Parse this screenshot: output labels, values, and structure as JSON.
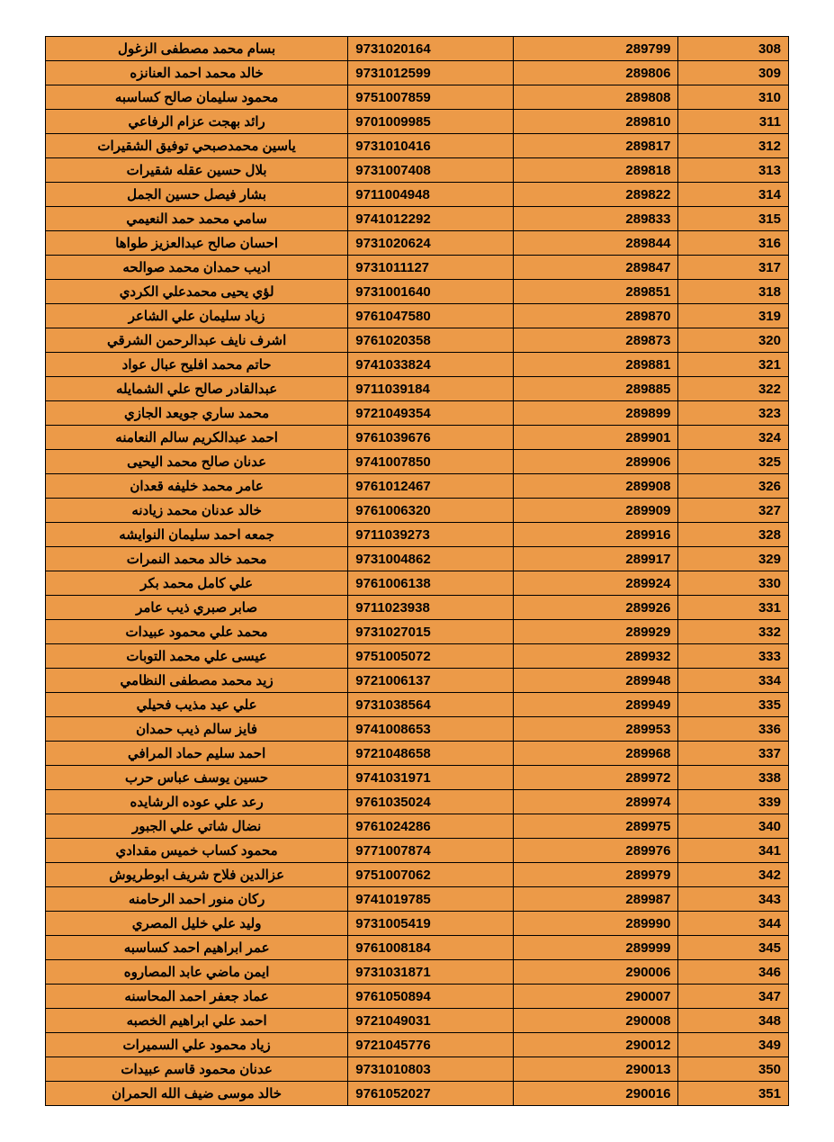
{
  "table": {
    "background_color": "#ec9a48",
    "border_color": "#000000",
    "text_color": "#000000",
    "font_weight": "bold",
    "font_size": 15,
    "columns": [
      {
        "key": "name",
        "align": "center",
        "width": "42%"
      },
      {
        "key": "id",
        "align": "left",
        "width": "22%"
      },
      {
        "key": "code",
        "align": "right",
        "width": "22%"
      },
      {
        "key": "seq",
        "align": "right",
        "width": "14%"
      }
    ],
    "rows": [
      {
        "name": "بسام محمد مصطفى الزغول",
        "id": "9731020164",
        "code": "289799",
        "seq": "308"
      },
      {
        "name": "خالد محمد احمد العنانزه",
        "id": "9731012599",
        "code": "289806",
        "seq": "309"
      },
      {
        "name": "محمود سليمان صالح كساسبه",
        "id": "9751007859",
        "code": "289808",
        "seq": "310"
      },
      {
        "name": "رائد بهجت عزام الرفاعي",
        "id": "9701009985",
        "code": "289810",
        "seq": "311"
      },
      {
        "name": "ياسين محمدصبحي توفيق الشقيرات",
        "id": "9731010416",
        "code": "289817",
        "seq": "312"
      },
      {
        "name": "بلال حسين عقله شقيرات",
        "id": "9731007408",
        "code": "289818",
        "seq": "313"
      },
      {
        "name": "بشار فيصل حسين الجمل",
        "id": "9711004948",
        "code": "289822",
        "seq": "314"
      },
      {
        "name": "سامي محمد حمد النعيمي",
        "id": "9741012292",
        "code": "289833",
        "seq": "315"
      },
      {
        "name": "احسان صالح عبدالعزيز طواها",
        "id": "9731020624",
        "code": "289844",
        "seq": "316"
      },
      {
        "name": "اديب حمدان محمد صوالحه",
        "id": "9731011127",
        "code": "289847",
        "seq": "317"
      },
      {
        "name": "لؤي يحيى محمدعلي الكردي",
        "id": "9731001640",
        "code": "289851",
        "seq": "318"
      },
      {
        "name": "زياد سليمان علي الشاعر",
        "id": "9761047580",
        "code": "289870",
        "seq": "319"
      },
      {
        "name": "اشرف نايف عبدالرحمن الشرقي",
        "id": "9761020358",
        "code": "289873",
        "seq": "320"
      },
      {
        "name": "حاتم محمد افليح عبال عواد",
        "id": "9741033824",
        "code": "289881",
        "seq": "321"
      },
      {
        "name": "عبدالقادر صالح علي الشمايله",
        "id": "9711039184",
        "code": "289885",
        "seq": "322"
      },
      {
        "name": "محمد ساري جويعد الجازي",
        "id": "9721049354",
        "code": "289899",
        "seq": "323"
      },
      {
        "name": "احمد عبدالكريم سالم النعامنه",
        "id": "9761039676",
        "code": "289901",
        "seq": "324"
      },
      {
        "name": "عدنان صالح محمد اليحيى",
        "id": "9741007850",
        "code": "289906",
        "seq": "325"
      },
      {
        "name": "عامر محمد خليفه قعدان",
        "id": "9761012467",
        "code": "289908",
        "seq": "326"
      },
      {
        "name": "خالد عدنان محمد زيادنه",
        "id": "9761006320",
        "code": "289909",
        "seq": "327"
      },
      {
        "name": "جمعه احمد سليمان النوايشه",
        "id": "9711039273",
        "code": "289916",
        "seq": "328"
      },
      {
        "name": "محمد خالد محمد النمرات",
        "id": "9731004862",
        "code": "289917",
        "seq": "329"
      },
      {
        "name": "علي كامل محمد بكر",
        "id": "9761006138",
        "code": "289924",
        "seq": "330"
      },
      {
        "name": "صابر صبري ذيب عامر",
        "id": "9711023938",
        "code": "289926",
        "seq": "331"
      },
      {
        "name": "محمد علي محمود عبيدات",
        "id": "9731027015",
        "code": "289929",
        "seq": "332"
      },
      {
        "name": "عيسى علي محمد التوبات",
        "id": "9751005072",
        "code": "289932",
        "seq": "333"
      },
      {
        "name": "زيد محمد مصطفى النظامي",
        "id": "9721006137",
        "code": "289948",
        "seq": "334"
      },
      {
        "name": "علي عيد مذيب فحيلي",
        "id": "9731038564",
        "code": "289949",
        "seq": "335"
      },
      {
        "name": "فايز سالم ذيب حمدان",
        "id": "9741008653",
        "code": "289953",
        "seq": "336"
      },
      {
        "name": "احمد سليم حماد المرافي",
        "id": "9721048658",
        "code": "289968",
        "seq": "337"
      },
      {
        "name": "حسين يوسف عباس حرب",
        "id": "9741031971",
        "code": "289972",
        "seq": "338"
      },
      {
        "name": "رعد علي عوده الرشايده",
        "id": "9761035024",
        "code": "289974",
        "seq": "339"
      },
      {
        "name": "نضال شاتي علي الجبور",
        "id": "9761024286",
        "code": "289975",
        "seq": "340"
      },
      {
        "name": "محمود كساب خميس مقدادي",
        "id": "9771007874",
        "code": "289976",
        "seq": "341"
      },
      {
        "name": "عزالدين فلاح شريف ابوطريوش",
        "id": "9751007062",
        "code": "289979",
        "seq": "342"
      },
      {
        "name": "ركان منور احمد الرحامنه",
        "id": "9741019785",
        "code": "289987",
        "seq": "343"
      },
      {
        "name": "وليد علي خليل المصري",
        "id": "9731005419",
        "code": "289990",
        "seq": "344"
      },
      {
        "name": "عمر ابراهيم احمد كساسبه",
        "id": "9761008184",
        "code": "289999",
        "seq": "345"
      },
      {
        "name": "ايمن ماضي عابد المصاروه",
        "id": "9731031871",
        "code": "290006",
        "seq": "346"
      },
      {
        "name": "عماد جعفر احمد المحاسنه",
        "id": "9761050894",
        "code": "290007",
        "seq": "347"
      },
      {
        "name": "احمد علي ابراهيم الخصبه",
        "id": "9721049031",
        "code": "290008",
        "seq": "348"
      },
      {
        "name": "زياد محمود علي السميرات",
        "id": "9721045776",
        "code": "290012",
        "seq": "349"
      },
      {
        "name": "عدنان محمود قاسم عبيدات",
        "id": "9731010803",
        "code": "290013",
        "seq": "350"
      },
      {
        "name": "خالد موسى ضيف الله الحمران",
        "id": "9761052027",
        "code": "290016",
        "seq": "351"
      }
    ]
  }
}
